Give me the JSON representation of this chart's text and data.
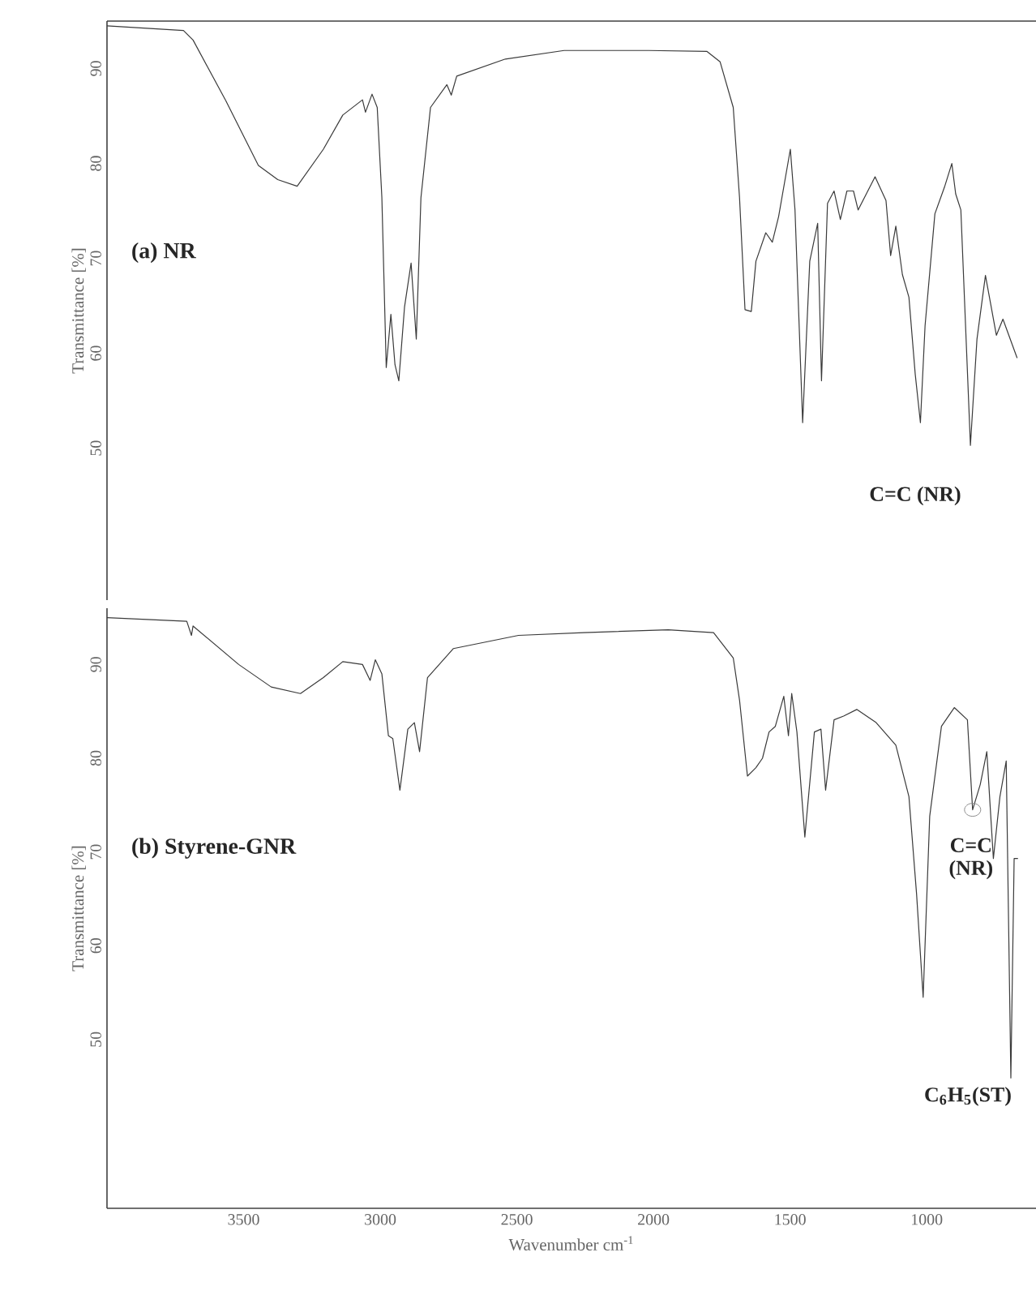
{
  "chart_data": [
    {
      "type": "line",
      "ylabel": "Transmittance [%]",
      "xlim": [
        4000,
        600
      ],
      "ylim": [
        34,
        95
      ],
      "xticks": [
        3500,
        3000,
        2500,
        2000,
        1500,
        1000
      ],
      "yticks": [
        50,
        60,
        70,
        80,
        90
      ],
      "tick_labels": "y",
      "annotations": [
        "(a) NR",
        "C=C (NR)"
      ],
      "series": [
        {
          "color": "#3a3a3a",
          "x": [
            4000,
            3720,
            3685,
            3565,
            3446,
            3375,
            3304,
            3208,
            3137,
            3065,
            3054,
            3030,
            3011,
            2994,
            2978,
            2961,
            2946,
            2932,
            2911,
            2887,
            2868,
            2851,
            2816,
            2756,
            2740,
            2720,
            2542,
            2327,
            2018,
            1804,
            1756,
            1708,
            1685,
            1665,
            1642,
            1625,
            1589,
            1565,
            1542,
            1499,
            1482,
            1454,
            1428,
            1399,
            1385,
            1363,
            1339,
            1316,
            1292,
            1268,
            1251,
            1189,
            1149,
            1132,
            1113,
            1089,
            1065,
            1042,
            1023,
            1006,
            970,
            935,
            908,
            894,
            875,
            840,
            816,
            785,
            745,
            721,
            669
          ],
          "values": [
            94.5,
            94,
            93,
            86.6,
            79.8,
            78.3,
            77.6,
            81.5,
            85.1,
            86.7,
            85.4,
            87.3,
            85.9,
            76.4,
            58.5,
            64.1,
            58.8,
            57.1,
            64.9,
            69.5,
            61.5,
            76.4,
            85.9,
            88.3,
            87.2,
            89.2,
            91.0,
            91.9,
            91.9,
            91.8,
            90.7,
            85.9,
            76.4,
            64.6,
            64.4,
            69.7,
            72.7,
            71.7,
            74.4,
            81.5,
            75.1,
            52.7,
            69.7,
            73.7,
            57.1,
            75.8,
            77.1,
            74.1,
            77.1,
            77.1,
            75.1,
            78.6,
            76.1,
            70.3,
            73.4,
            68.3,
            65.9,
            57.8,
            52.7,
            62.9,
            74.7,
            77.5,
            80.0,
            76.8,
            75.1,
            50.3,
            61.5,
            68.2,
            61.9,
            63.6,
            59.5
          ]
        }
      ]
    },
    {
      "type": "line",
      "xlabel": "Wavenumber cm$^{-1}$",
      "ylabel": "Transmittance [%]",
      "xlim": [
        4000,
        600
      ],
      "ylim": [
        32,
        96
      ],
      "xticks": [
        3500,
        3000,
        2500,
        2000,
        1500,
        1000
      ],
      "yticks": [
        50,
        60,
        70,
        80,
        90
      ],
      "annotations": [
        "(b) Styrene-GNR",
        {
          "text": "C=C (NR)",
          "x": 832,
          "y": 74.5
        },
        {
          "text": "C$_{6}$H$_{5}$(ST)",
          "x": 692,
          "y": 45.9
        }
      ],
      "series": [
        {
          "color": "#3a3a3a",
          "x": [
            4000,
            3708,
            3691,
            3685,
            3518,
            3399,
            3292,
            3208,
            3137,
            3065,
            3037,
            3018,
            2994,
            2970,
            2954,
            2928,
            2899,
            2875,
            2856,
            2827,
            2732,
            2494,
            2256,
            1946,
            1780,
            1708,
            1685,
            1656,
            1625,
            1601,
            1577,
            1554,
            1523,
            1506,
            1494,
            1475,
            1446,
            1411,
            1387,
            1370,
            1339,
            1304,
            1256,
            1185,
            1113,
            1065,
            1037,
            1013,
            989,
            946,
            899,
            851,
            832,
            804,
            780,
            756,
            732,
            709,
            692,
            680,
            666
          ],
          "values": [
            95.0,
            94.6,
            93.1,
            94.1,
            90.0,
            87.6,
            86.9,
            88.6,
            90.3,
            90.0,
            88.3,
            90.5,
            89.0,
            82.4,
            82.1,
            76.6,
            83.1,
            83.8,
            80.7,
            88.6,
            91.7,
            93.1,
            93.4,
            93.7,
            93.4,
            90.7,
            86.2,
            78.1,
            79.0,
            80.0,
            82.8,
            83.4,
            86.6,
            82.4,
            86.9,
            82.8,
            71.6,
            82.8,
            83.1,
            76.6,
            84.1,
            84.5,
            85.2,
            83.8,
            81.4,
            75.9,
            65.5,
            54.5,
            73.8,
            83.4,
            85.4,
            84.1,
            74.5,
            77.2,
            80.7,
            69.3,
            75.9,
            79.7,
            45.9,
            69.3,
            69.3
          ]
        }
      ]
    }
  ]
}
